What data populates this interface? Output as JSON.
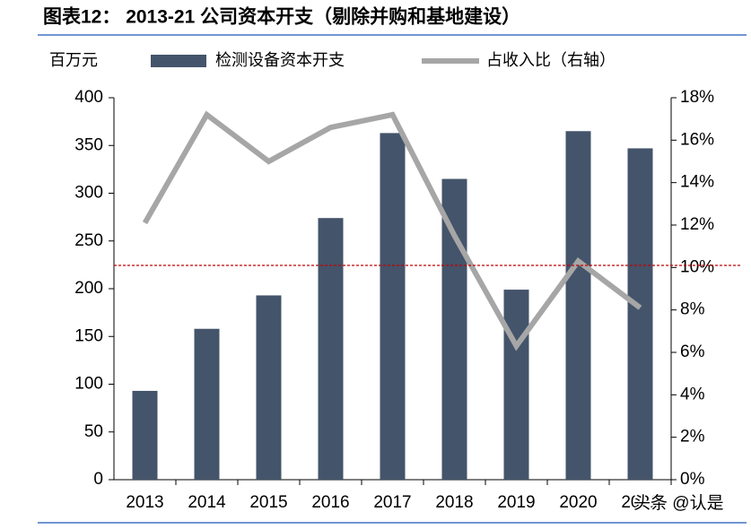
{
  "chart_data": {
    "type": "bar_line",
    "title": "图表12：  2013-21 公司资本开支（剔除并购和基地建设）",
    "y_label": "百万元",
    "categories": [
      "2013",
      "2014",
      "2015",
      "2016",
      "2017",
      "2018",
      "2019",
      "2020",
      "2021"
    ],
    "series": [
      {
        "name": "检测设备资本开支",
        "type": "bar",
        "color": "#44546a",
        "values": [
          93,
          158,
          193,
          274,
          363,
          315,
          199,
          365,
          347
        ]
      },
      {
        "name": "占收入比（右轴）",
        "type": "line",
        "axis": "y2",
        "color": "#a6a6a6",
        "values": [
          12.1,
          17.2,
          15.0,
          16.6,
          17.2,
          11.5,
          6.3,
          10.3,
          8.1
        ]
      }
    ],
    "reference_line": {
      "value": 10.1,
      "axis": "y2",
      "color": "#c00000"
    },
    "ylim": [
      0,
      400
    ],
    "yticks": [
      0,
      50,
      100,
      150,
      200,
      250,
      300,
      350,
      400
    ],
    "y2lim": [
      0,
      18
    ],
    "y2ticks": [
      {
        "value": 0,
        "label": "0%"
      },
      {
        "value": 2,
        "label": "2%"
      },
      {
        "value": 4,
        "label": "4%"
      },
      {
        "value": 6,
        "label": "6%"
      },
      {
        "value": 8,
        "label": "8%"
      },
      {
        "value": 10,
        "label": "10%"
      },
      {
        "value": 12,
        "label": "12%"
      },
      {
        "value": 14,
        "label": "14%"
      },
      {
        "value": 16,
        "label": "16%"
      },
      {
        "value": 18,
        "label": "18%"
      }
    ],
    "watermark": "头条 @认是"
  }
}
